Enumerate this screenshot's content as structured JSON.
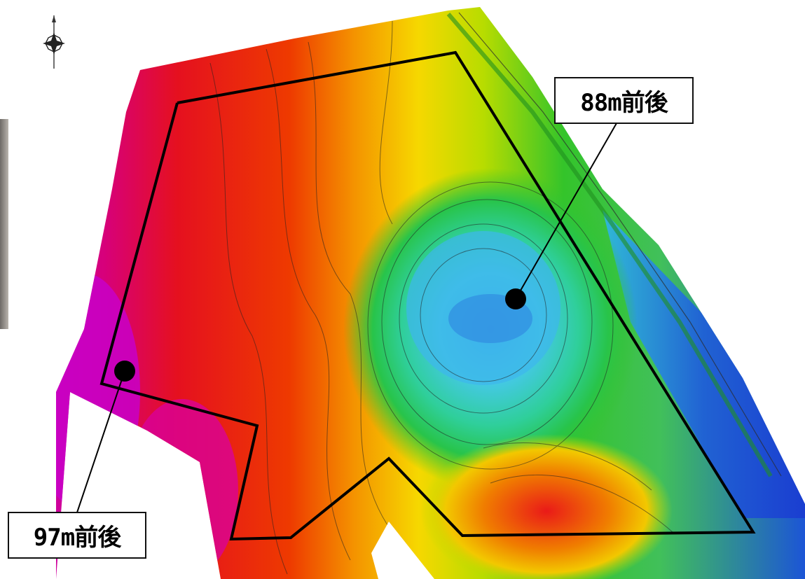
{
  "labels": {
    "north_point": "88m前後",
    "south_west_point": "97m前後"
  },
  "colors": {
    "high_elevation": "#e4001f",
    "highest_elevation": "#d400c8",
    "mid_elevation": "#f3e400",
    "low_mid_elevation": "#27c400",
    "low_elevation": "#33c5e8",
    "lowest_elevation": "#1b3fd0",
    "boundary_line": "#000000",
    "marker": "#000000"
  },
  "icons": {
    "compass": "north-arrow-icon"
  }
}
